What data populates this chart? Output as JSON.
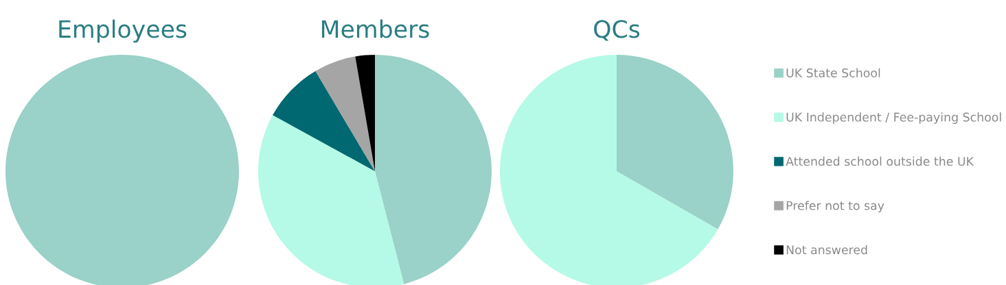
{
  "chart_data": [
    {
      "type": "pie",
      "title": "Employees",
      "categories": [
        null,
        null,
        null,
        null,
        null
      ],
      "values": [
        100,
        0,
        0,
        0,
        0
      ],
      "colors": [
        "#9ad1c8",
        "#b5fae6",
        "#006870",
        "#a5a5a5",
        "#000000"
      ]
    },
    {
      "type": "pie",
      "title": "Members",
      "categories": [
        null,
        null,
        null,
        null,
        null
      ],
      "values": [
        46,
        37,
        8.5,
        5.8,
        2.7
      ],
      "colors": [
        "#9ad1c8",
        "#b5fae6",
        "#006870",
        "#a5a5a5",
        "#000000"
      ]
    },
    {
      "type": "pie",
      "title": "QCs",
      "categories": [
        "UK State School",
        "UK Independent / Fee-paying School",
        "Attended school outside the UK",
        "Prefer not to say",
        "Not answered"
      ],
      "values": [
        33.3,
        66.7,
        0,
        0,
        0
      ],
      "colors": [
        "#9ad1c8",
        "#b5fae6",
        "#006870",
        "#a5a5a5",
        "#000000"
      ],
      "legend": "right"
    }
  ]
}
